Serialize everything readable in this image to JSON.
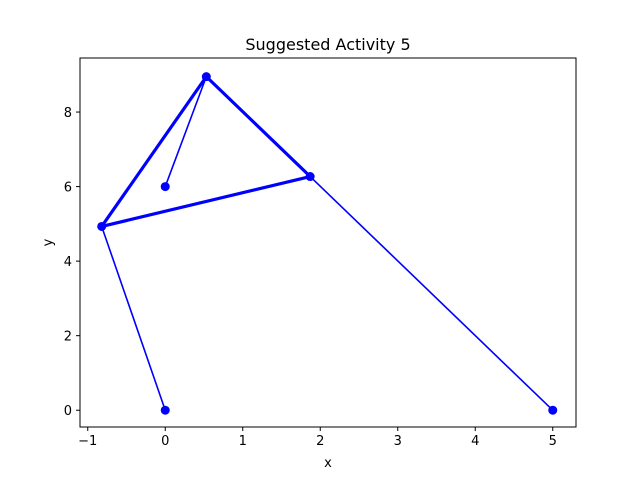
{
  "chart_data": {
    "type": "line",
    "title": "Suggested Activity 5",
    "xlabel": "x",
    "ylabel": "y",
    "xlim": [
      -1.1,
      5.3
    ],
    "ylim": [
      -0.45,
      9.45
    ],
    "xticks": [
      -1,
      0,
      1,
      2,
      3,
      4,
      5
    ],
    "yticks": [
      0,
      2,
      4,
      6,
      8
    ],
    "grid": false,
    "color": "#0000ff",
    "series": [
      {
        "x": [
          0,
          0.53,
          -0.82,
          0
        ],
        "y": [
          6,
          8.95,
          4.93,
          0
        ]
      },
      {
        "x": [
          0.53,
          1.87,
          5
        ],
        "y": [
          8.95,
          6.27,
          0
        ]
      },
      {
        "x": [
          -0.82,
          1.87
        ],
        "y": [
          4.93,
          6.27
        ]
      }
    ],
    "emphasized_segments": [
      {
        "x": [
          0.53,
          -0.82
        ],
        "y": [
          8.95,
          4.93
        ]
      },
      {
        "x": [
          -0.82,
          1.87
        ],
        "y": [
          4.93,
          6.27
        ]
      },
      {
        "x": [
          0.53,
          1.87
        ],
        "y": [
          8.95,
          6.27
        ]
      }
    ],
    "points": [
      {
        "x": 0,
        "y": 0
      },
      {
        "x": 0,
        "y": 6
      },
      {
        "x": -0.82,
        "y": 4.93
      },
      {
        "x": 0.53,
        "y": 8.95
      },
      {
        "x": 1.87,
        "y": 6.27
      },
      {
        "x": 5,
        "y": 0
      }
    ]
  }
}
